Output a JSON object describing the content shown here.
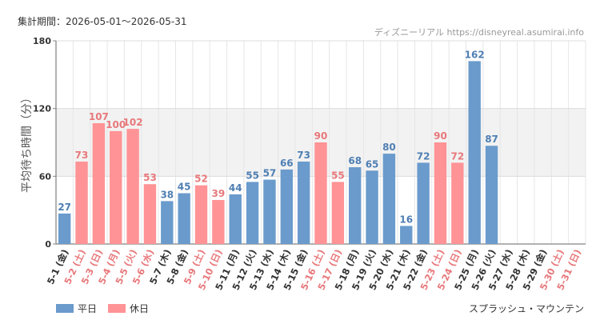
{
  "header": {
    "period": "集計期間：2026-05-01〜2026-05-31",
    "site": "ディズニーリアル https://disneyreal.asumirai.info"
  },
  "attraction": "スプラッシュ・マウンテン",
  "legend": [
    {
      "label": "平日",
      "color": "#6a9bcc"
    },
    {
      "label": "休日",
      "color": "#ff9395"
    }
  ],
  "colors": {
    "weekday": "#6a9bcc",
    "holiday": "#ff9395",
    "weekday_label": "#4f7fb3",
    "holiday_label": "#e8787b",
    "band": "#f2f2f2"
  },
  "chart_data": {
    "type": "bar",
    "ylabel": "平均待ち時間（分）",
    "ylim": [
      0,
      180
    ],
    "yticks": [
      "0",
      "60",
      "120",
      "180"
    ],
    "shaded_band": [
      60,
      120
    ],
    "grid": true,
    "categories": [
      "5-1 (金)",
      "5-2 (土)",
      "5-3 (日)",
      "5-4 (月)",
      "5-5 (火)",
      "5-6 (水)",
      "5-7 (木)",
      "5-8 (金)",
      "5-9 (土)",
      "5-10 (日)",
      "5-11 (月)",
      "5-12 (火)",
      "5-13 (水)",
      "5-14 (木)",
      "5-15 (金)",
      "5-16 (土)",
      "5-17 (日)",
      "5-18 (月)",
      "5-19 (火)",
      "5-20 (水)",
      "5-21 (木)",
      "5-22 (金)",
      "5-23 (土)",
      "5-24 (日)",
      "5-25 (月)",
      "5-26 (火)",
      "5-27 (水)",
      "5-28 (木)",
      "5-29 (金)",
      "5-30 (土)",
      "5-31 (日)"
    ],
    "values": [
      27,
      73,
      107,
      100,
      102,
      53,
      38,
      45,
      52,
      39,
      44,
      55,
      57,
      66,
      73,
      90,
      55,
      68,
      65,
      80,
      16,
      72,
      90,
      72,
      162,
      87,
      null,
      null,
      null,
      null,
      null
    ],
    "day_type": [
      "weekday",
      "holiday",
      "holiday",
      "holiday",
      "holiday",
      "holiday",
      "weekday",
      "weekday",
      "holiday",
      "holiday",
      "weekday",
      "weekday",
      "weekday",
      "weekday",
      "weekday",
      "holiday",
      "holiday",
      "weekday",
      "weekday",
      "weekday",
      "weekday",
      "weekday",
      "holiday",
      "holiday",
      "weekday",
      "weekday",
      "weekday",
      "weekday",
      "weekday",
      "holiday",
      "holiday"
    ]
  }
}
